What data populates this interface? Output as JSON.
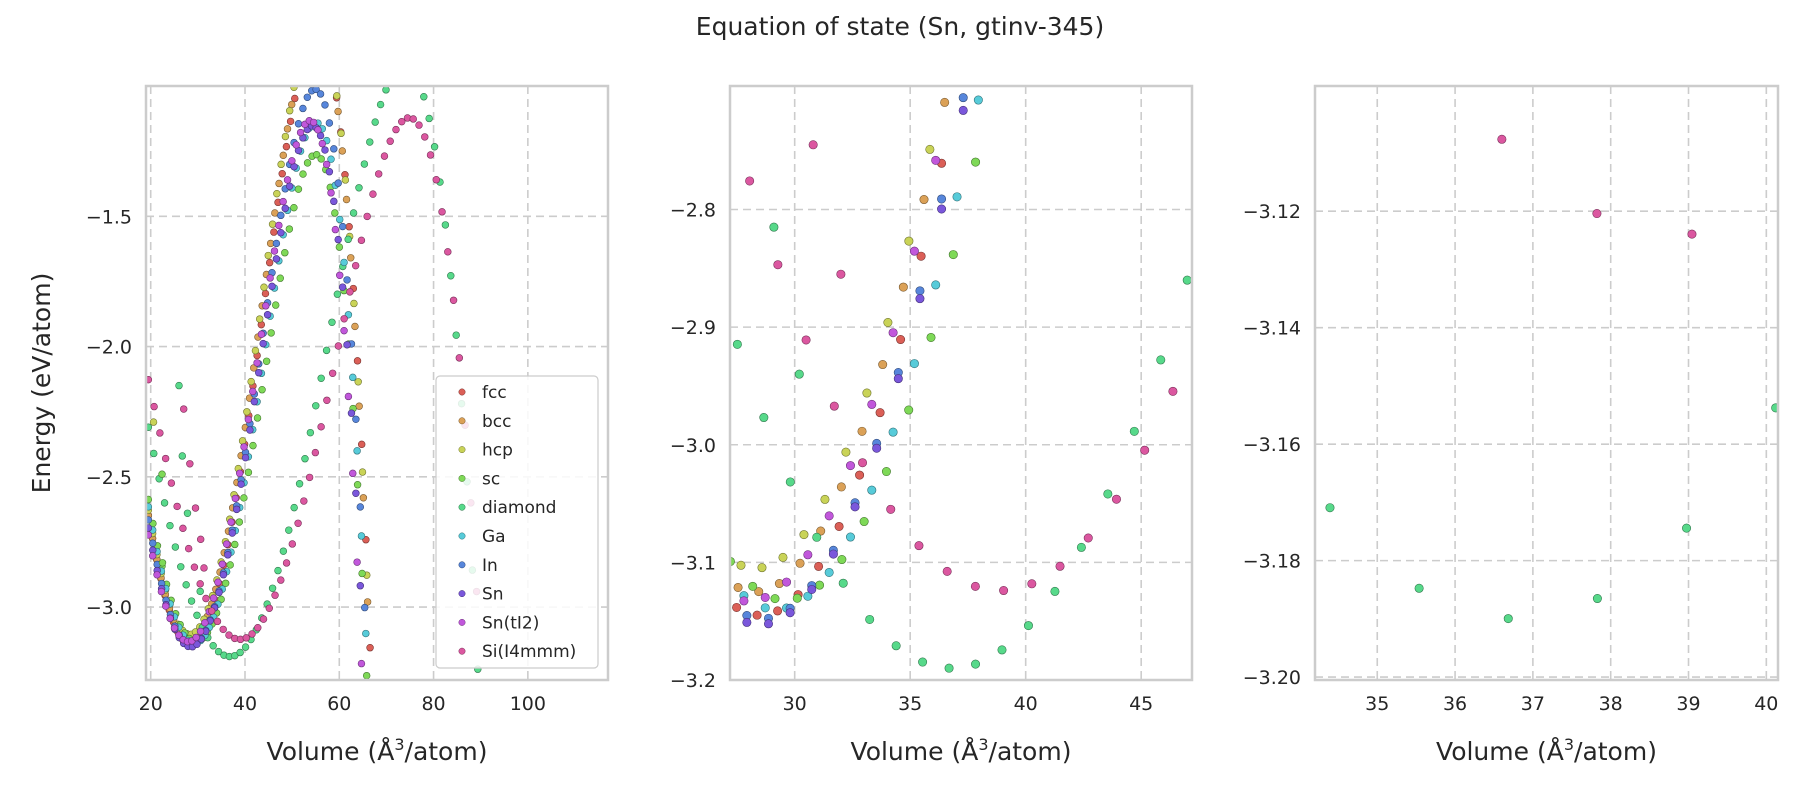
{
  "figure_title": "Equation of state (Sn, gtinv-345)",
  "colors": {
    "fcc": "#db5f57",
    "bcc": "#dba157",
    "hcp": "#c9d357",
    "sc": "#7ed957",
    "diamond": "#57d98a",
    "Ga": "#57cbd9",
    "In": "#5786db",
    "Sn": "#7a57db",
    "Sn(tI2)": "#c157db",
    "Si(I4mmm)": "#db57a0"
  },
  "chart_data": [
    {
      "type": "scatter",
      "ylabel": "Energy (eV/atom)",
      "xlabel_text": "Volume (",
      "xlabel_unit": "Å",
      "xlabel_exp": "3",
      "xlabel_tail": "/atom)",
      "xlim": [
        19,
        117
      ],
      "ylim": [
        -3.28,
        -1.0
      ],
      "xticks": [
        20,
        40,
        60,
        80,
        100
      ],
      "yticks": [
        -1.5,
        -2.0,
        -2.5,
        -3.0
      ],
      "ytick_labels": [
        "−1.5",
        "−2.0",
        "−2.5",
        "−3.0"
      ],
      "grid": true,
      "legend_position": "lower-right",
      "legend": [
        "fcc",
        "bcc",
        "hcp",
        "sc",
        "diamond",
        "Ga",
        "In",
        "Sn",
        "Sn(tI2)",
        "Si(I4mmm)"
      ],
      "series": [
        {
          "name": "fcc",
          "curve": {
            "v0": 28.5,
            "e0": -3.145,
            "a": 0.0065,
            "b": 4.5e-06,
            "vmin": 19.5,
            "vmax": 82.5,
            "n": 72
          }
        },
        {
          "name": "bcc",
          "curve": {
            "v0": 28.3,
            "e0": -3.125,
            "a": 0.0065,
            "b": 4.5e-06,
            "vmin": 19.5,
            "vmax": 83.0,
            "n": 72
          }
        },
        {
          "name": "hcp",
          "curve": {
            "v0": 28.3,
            "e0": -3.105,
            "a": 0.0065,
            "b": 4.5e-06,
            "vmin": 19.5,
            "vmax": 84.0,
            "n": 72
          }
        },
        {
          "name": "sc",
          "curve": {
            "v0": 29.6,
            "e0": -3.132,
            "a": 0.0058,
            "b": 4.5e-06,
            "vmin": 19.5,
            "vmax": 88.0,
            "n": 72
          }
        },
        {
          "name": "diamond",
          "curve": {
            "v0": 36.8,
            "e0": -3.19,
            "a": 0.0033,
            "b": 1.2e-06,
            "vmin": 19.5,
            "vmax": 110.0,
            "n": 80
          }
        },
        {
          "name": "Ga",
          "curve": {
            "v0": 29.2,
            "e0": -3.14,
            "a": 0.006,
            "b": 4.5e-06,
            "vmin": 19.5,
            "vmax": 85.0,
            "n": 72
          }
        },
        {
          "name": "In",
          "curve": {
            "v0": 28.6,
            "e0": -3.148,
            "a": 0.0062,
            "b": 4.5e-06,
            "vmin": 19.5,
            "vmax": 86.0,
            "n": 72
          }
        },
        {
          "name": "Sn",
          "curve": {
            "v0": 28.5,
            "e0": -3.153,
            "a": 0.006,
            "b": 4.5e-06,
            "vmin": 19.5,
            "vmax": 86.0,
            "n": 72
          }
        },
        {
          "name": "Sn(tI2)",
          "curve": {
            "v0": 28.0,
            "e0": -3.133,
            "a": 0.006,
            "b": 4.5e-06,
            "vmin": 19.5,
            "vmax": 85.0,
            "n": 72
          }
        },
        {
          "name": "Si(I4mmm)",
          "curve": {
            "v0": 38.9,
            "e0": -3.124,
            "a": 0.0031,
            "b": 1.2e-06,
            "vmin": 19.5,
            "vmax": 116.0,
            "n": 80
          }
        }
      ],
      "extra_points": [
        {
          "series": "diamond",
          "x": 26.0,
          "y": -2.15
        },
        {
          "series": "diamond",
          "x": 26.7,
          "y": -2.42
        },
        {
          "series": "diamond",
          "x": 27.8,
          "y": -2.64
        },
        {
          "series": "Si(I4mmm)",
          "x": 27.0,
          "y": -2.24
        },
        {
          "series": "Si(I4mmm)",
          "x": 28.3,
          "y": -2.45
        },
        {
          "series": "Si(I4mmm)",
          "x": 29.5,
          "y": -2.62
        },
        {
          "series": "hcp",
          "x": 20.6,
          "y": -2.29
        },
        {
          "series": "sc",
          "x": 22.4,
          "y": -2.49
        },
        {
          "series": "sc",
          "x": 22.5,
          "y": -2.83
        },
        {
          "series": "Si(I4mmm)",
          "x": 30.6,
          "y": -2.74
        },
        {
          "series": "Si(I4mmm)",
          "x": 31.3,
          "y": -2.85
        },
        {
          "series": "diamond",
          "x": 30.5,
          "y": -2.94
        }
      ]
    },
    {
      "type": "scatter",
      "xlabel_text": "Volume (",
      "xlabel_unit": "Å",
      "xlabel_exp": "3",
      "xlabel_tail": "/atom)",
      "xlim": [
        27.2,
        47.2
      ],
      "ylim": [
        -3.2,
        -2.695
      ],
      "xticks": [
        30,
        35,
        40,
        45
      ],
      "yticks": [
        -2.8,
        -2.9,
        -3.0,
        -3.1,
        -3.2
      ],
      "ytick_labels": [
        "−2.8",
        "−2.9",
        "−3.0",
        "−3.1",
        "−3.2"
      ],
      "grid": true,
      "series": [
        {
          "name": "fcc",
          "curve": {
            "v0": 28.5,
            "e0": -3.145,
            "a": 0.0065,
            "b": 4.5e-06,
            "vmin": 19.5,
            "vmax": 82.5,
            "n": 72
          }
        },
        {
          "name": "bcc",
          "curve": {
            "v0": 28.3,
            "e0": -3.125,
            "a": 0.0065,
            "b": 4.5e-06,
            "vmin": 19.5,
            "vmax": 83.0,
            "n": 72
          }
        },
        {
          "name": "hcp",
          "curve": {
            "v0": 28.3,
            "e0": -3.105,
            "a": 0.0065,
            "b": 4.5e-06,
            "vmin": 19.5,
            "vmax": 84.0,
            "n": 72
          }
        },
        {
          "name": "sc",
          "curve": {
            "v0": 29.6,
            "e0": -3.132,
            "a": 0.0058,
            "b": 4.5e-06,
            "vmin": 19.5,
            "vmax": 88.0,
            "n": 72
          }
        },
        {
          "name": "diamond",
          "curve": {
            "v0": 36.8,
            "e0": -3.19,
            "a": 0.0033,
            "b": 1.2e-06,
            "vmin": 19.5,
            "vmax": 110.0,
            "n": 80
          }
        },
        {
          "name": "Ga",
          "curve": {
            "v0": 29.2,
            "e0": -3.14,
            "a": 0.006,
            "b": 4.5e-06,
            "vmin": 19.5,
            "vmax": 85.0,
            "n": 72
          }
        },
        {
          "name": "In",
          "curve": {
            "v0": 28.6,
            "e0": -3.148,
            "a": 0.0062,
            "b": 4.5e-06,
            "vmin": 19.5,
            "vmax": 86.0,
            "n": 72
          }
        },
        {
          "name": "Sn",
          "curve": {
            "v0": 28.5,
            "e0": -3.153,
            "a": 0.006,
            "b": 4.5e-06,
            "vmin": 19.5,
            "vmax": 86.0,
            "n": 72
          }
        },
        {
          "name": "Sn(tI2)",
          "curve": {
            "v0": 28.0,
            "e0": -3.133,
            "a": 0.006,
            "b": 4.5e-06,
            "vmin": 19.5,
            "vmax": 85.0,
            "n": 72
          }
        },
        {
          "name": "Si(I4mmm)",
          "curve": {
            "v0": 38.9,
            "e0": -3.124,
            "a": 0.0031,
            "b": 1.2e-06,
            "vmin": 19.5,
            "vmax": 116.0,
            "n": 80
          }
        }
      ],
      "extra_points": [
        {
          "series": "diamond",
          "x": 29.1,
          "y": -2.815
        },
        {
          "series": "diamond",
          "x": 30.2,
          "y": -2.94
        },
        {
          "series": "Si(I4mmm)",
          "x": 30.8,
          "y": -2.745
        },
        {
          "series": "Si(I4mmm)",
          "x": 32.0,
          "y": -2.855
        }
      ]
    },
    {
      "type": "scatter",
      "xlabel_text": "Volume (",
      "xlabel_unit": "Å",
      "xlabel_exp": "3",
      "xlabel_tail": "/atom)",
      "xlim": [
        34.2,
        40.15
      ],
      "ylim": [
        -3.2005,
        -3.0985
      ],
      "xticks": [
        35,
        36,
        37,
        38,
        39,
        40
      ],
      "yticks": [
        -3.12,
        -3.14,
        -3.16,
        -3.18,
        -3.2
      ],
      "ytick_labels": [
        "−3.12",
        "−3.14",
        "−3.16",
        "−3.18",
        "−3.20"
      ],
      "grid": true,
      "series": [
        {
          "name": "diamond",
          "curve": {
            "v0": 36.8,
            "e0": -3.19,
            "a": 0.0033,
            "b": 1.2e-06,
            "vmin": 19.5,
            "vmax": 110.0,
            "n": 80
          }
        },
        {
          "name": "Si(I4mmm)",
          "curve": {
            "v0": 38.9,
            "e0": -3.124,
            "a": 0.0031,
            "b": 1.2e-06,
            "vmin": 19.5,
            "vmax": 116.0,
            "n": 80
          }
        }
      ],
      "extra_points": []
    }
  ]
}
